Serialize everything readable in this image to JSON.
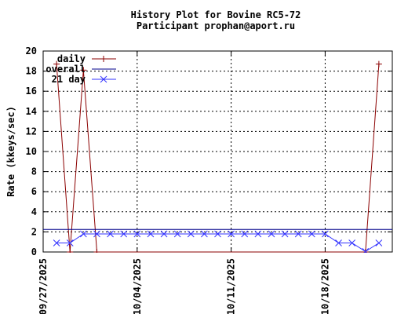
{
  "chart_data": {
    "type": "line",
    "title": "History Plot for Bovine RC5-72",
    "subtitle": "Participant prophan@aport.ru",
    "xlabel": "",
    "ylabel": "Rate (kkeys/sec)",
    "ylim": [
      0,
      20
    ],
    "yticks": [
      0,
      2,
      4,
      6,
      8,
      10,
      12,
      14,
      16,
      18,
      20
    ],
    "xlim": [
      "09/27/2025",
      "10/23/2025"
    ],
    "xticks": [
      "09/27/2025",
      "10/04/2025",
      "10/11/2025",
      "10/18/2025"
    ],
    "grid": true,
    "legend_position": "top-left",
    "series": [
      {
        "name": "daily",
        "color": "#8b0000",
        "marker": "plus",
        "x": [
          "09/28/2025",
          "09/29/2025",
          "09/30/2025",
          "10/01/2025",
          "10/21/2025",
          "10/22/2025"
        ],
        "y": [
          18.7,
          0,
          18.1,
          0,
          0,
          18.7
        ]
      },
      {
        "name": "overall",
        "color": "#00008b",
        "marker": "none",
        "x": [
          "09/27/2025",
          "10/23/2025"
        ],
        "y": [
          2.25,
          2.25
        ]
      },
      {
        "name": "21 day",
        "color": "#3333ff",
        "marker": "cross",
        "x": [
          "09/28/2025",
          "09/29/2025",
          "09/30/2025",
          "10/01/2025",
          "10/02/2025",
          "10/03/2025",
          "10/04/2025",
          "10/05/2025",
          "10/06/2025",
          "10/07/2025",
          "10/08/2025",
          "10/09/2025",
          "10/10/2025",
          "10/11/2025",
          "10/12/2025",
          "10/13/2025",
          "10/14/2025",
          "10/15/2025",
          "10/16/2025",
          "10/17/2025",
          "10/18/2025",
          "10/19/2025",
          "10/20/2025",
          "10/21/2025",
          "10/22/2025"
        ],
        "y": [
          0.9,
          0.9,
          1.8,
          1.8,
          1.8,
          1.8,
          1.8,
          1.8,
          1.8,
          1.8,
          1.8,
          1.8,
          1.8,
          1.8,
          1.8,
          1.8,
          1.8,
          1.8,
          1.8,
          1.8,
          1.8,
          0.9,
          0.9,
          0.05,
          0.9
        ]
      }
    ]
  }
}
